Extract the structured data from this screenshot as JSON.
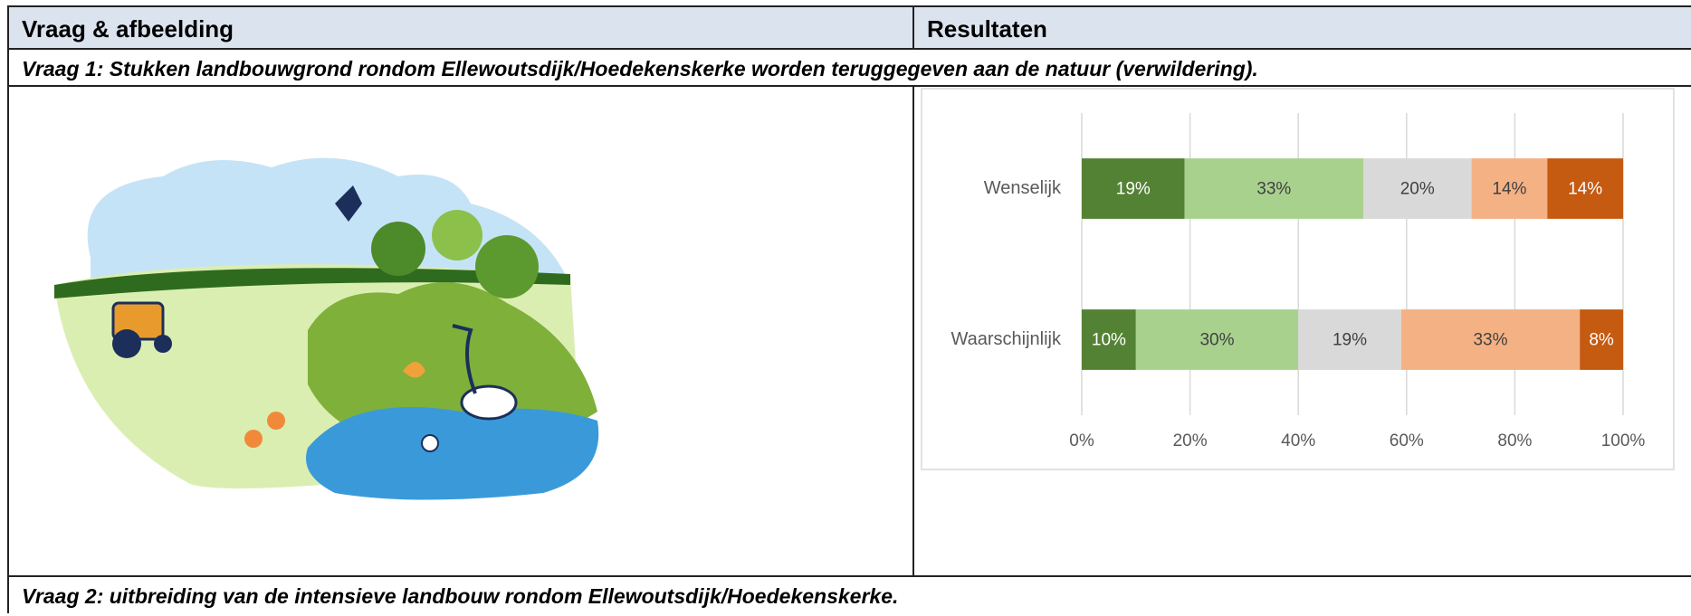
{
  "table": {
    "header": [
      "Vraag & afbeelding",
      "Resultaten"
    ],
    "rows": [
      "Vraag 1: Stukken landbouwgrond rondom Ellewoutsdijk/Hoedekenskerke worden teruggegeven aan de natuur (verwildering).",
      "Vraag 2: uitbreiding van de intensieve landbouw rondom Ellewoutsdijk/Hoedekenskerke."
    ]
  },
  "chart_data": {
    "type": "stacked-bar-horizontal",
    "categories": [
      "Wenselijk",
      "Waarschijnlijk"
    ],
    "series": [
      {
        "color": "#548235",
        "label_color": "#ffffff",
        "values": [
          19,
          10
        ],
        "value_labels": [
          "19%",
          "10%"
        ]
      },
      {
        "color": "#a9d18e",
        "label_color": "#404040",
        "values": [
          33,
          30
        ],
        "value_labels": [
          "33%",
          "30%"
        ]
      },
      {
        "color": "#d9d9d9",
        "label_color": "#404040",
        "values": [
          20,
          19
        ],
        "value_labels": [
          "20%",
          "19%"
        ]
      },
      {
        "color": "#f4b183",
        "label_color": "#404040",
        "values": [
          14,
          33
        ],
        "value_labels": [
          "14%",
          "33%"
        ]
      },
      {
        "color": "#c55a11",
        "label_color": "#ffffff",
        "values": [
          14,
          8
        ],
        "value_labels": [
          "14%",
          "8%"
        ]
      }
    ],
    "xlim": [
      0,
      100
    ],
    "xticks": [
      {
        "value": 0,
        "label": "0%"
      },
      {
        "value": 20,
        "label": "20%"
      },
      {
        "value": 40,
        "label": "40%"
      },
      {
        "value": 60,
        "label": "60%"
      },
      {
        "value": 80,
        "label": "80%"
      },
      {
        "value": 100,
        "label": "100%"
      }
    ],
    "grid": true
  }
}
